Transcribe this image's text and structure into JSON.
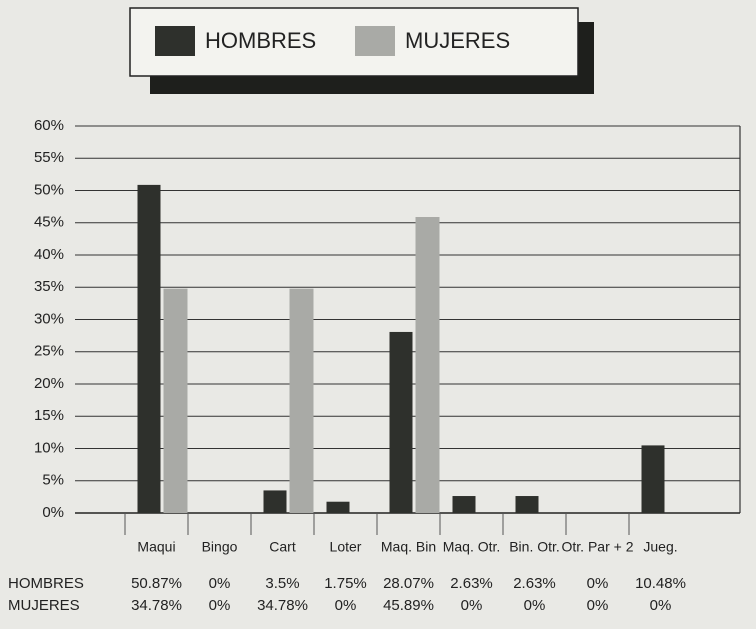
{
  "chart_data": {
    "type": "bar",
    "categories": [
      "Maqui",
      "Bingo",
      "Cart",
      "Loter",
      "Maq. Bin",
      "Maq. Otr.",
      "Bin. Otr.",
      "Otr. Par + 2",
      "Jueg."
    ],
    "series": [
      {
        "name": "HOMBRES",
        "color": "#2e302c",
        "values": [
          50.87,
          0,
          3.5,
          1.75,
          28.07,
          2.63,
          2.63,
          0,
          10.48
        ],
        "value_labels": [
          "50.87%",
          "0%",
          "3.5%",
          "1.75%",
          "28.07%",
          "2.63%",
          "2.63%",
          "0%",
          "10.48%"
        ]
      },
      {
        "name": "MUJERES",
        "color": "#a9aaa6",
        "values": [
          34.78,
          0,
          34.78,
          0,
          45.89,
          0,
          0,
          0,
          0
        ],
        "value_labels": [
          "34.78%",
          "0%",
          "34.78%",
          "0%",
          "45.89%",
          "0%",
          "0%",
          "0%",
          "0%"
        ]
      }
    ],
    "ylim": [
      0,
      60
    ],
    "yticks": [
      {
        "value": 0,
        "label": "0%"
      },
      {
        "value": 5,
        "label": "5%"
      },
      {
        "value": 10,
        "label": "10%"
      },
      {
        "value": 15,
        "label": "15%"
      },
      {
        "value": 20,
        "label": "20%"
      },
      {
        "value": 25,
        "label": "25%"
      },
      {
        "value": 30,
        "label": "30%"
      },
      {
        "value": 35,
        "label": "35%"
      },
      {
        "value": 40,
        "label": "40%"
      },
      {
        "value": 45,
        "label": "45%"
      },
      {
        "value": 50,
        "label": "50%"
      },
      {
        "value": 55,
        "label": "55%"
      },
      {
        "value": 60,
        "label": "60%"
      }
    ],
    "grid": true,
    "legend": "top"
  }
}
